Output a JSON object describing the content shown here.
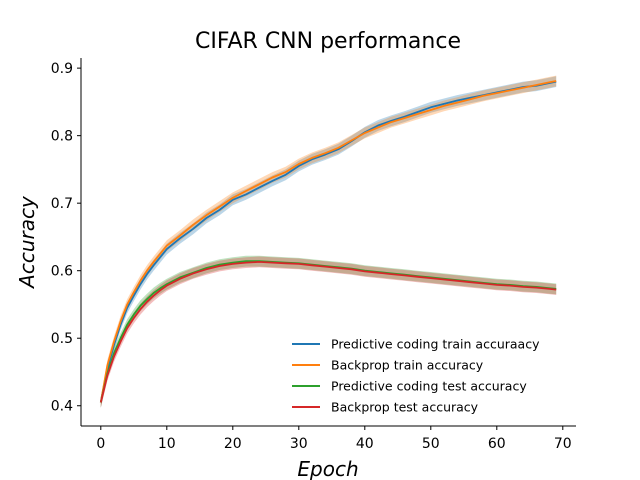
{
  "chart_data": {
    "type": "line",
    "title": "CIFAR CNN performance",
    "xlabel": "Epoch",
    "ylabel": "Accuracy",
    "xlim": [
      -3,
      72
    ],
    "ylim": [
      0.37,
      0.915
    ],
    "xticks": [
      0,
      10,
      20,
      30,
      40,
      50,
      60,
      70
    ],
    "yticks": [
      0.4,
      0.5,
      0.6,
      0.7,
      0.8,
      0.9
    ],
    "grid": false,
    "legend_position": "lower-right",
    "series": [
      {
        "name": "Predictive coding train accuraacy",
        "color": "#1f77b4",
        "x": [
          0,
          1,
          2,
          3,
          4,
          5,
          6,
          7,
          8,
          9,
          10,
          12,
          14,
          16,
          18,
          20,
          22,
          24,
          26,
          28,
          30,
          32,
          34,
          36,
          38,
          40,
          42,
          44,
          46,
          48,
          50,
          52,
          54,
          56,
          58,
          60,
          62,
          64,
          66,
          68,
          69
        ],
        "y": [
          0.405,
          0.455,
          0.49,
          0.52,
          0.545,
          0.563,
          0.58,
          0.595,
          0.608,
          0.62,
          0.632,
          0.648,
          0.662,
          0.678,
          0.69,
          0.705,
          0.713,
          0.723,
          0.733,
          0.742,
          0.755,
          0.765,
          0.772,
          0.78,
          0.792,
          0.805,
          0.815,
          0.822,
          0.828,
          0.835,
          0.842,
          0.847,
          0.852,
          0.856,
          0.86,
          0.864,
          0.868,
          0.872,
          0.874,
          0.878,
          0.88
        ],
        "band": 0.008
      },
      {
        "name": "Backprop train accuracy",
        "color": "#ff7f0e",
        "x": [
          0,
          1,
          2,
          3,
          4,
          5,
          6,
          7,
          8,
          9,
          10,
          12,
          14,
          16,
          18,
          20,
          22,
          24,
          26,
          28,
          30,
          32,
          34,
          36,
          38,
          40,
          42,
          44,
          46,
          48,
          50,
          52,
          54,
          56,
          58,
          60,
          62,
          64,
          66,
          68,
          69
        ],
        "y": [
          0.405,
          0.46,
          0.495,
          0.525,
          0.55,
          0.568,
          0.585,
          0.6,
          0.613,
          0.625,
          0.637,
          0.652,
          0.668,
          0.682,
          0.695,
          0.708,
          0.718,
          0.728,
          0.738,
          0.746,
          0.758,
          0.767,
          0.774,
          0.782,
          0.793,
          0.804,
          0.812,
          0.82,
          0.826,
          0.832,
          0.838,
          0.844,
          0.849,
          0.854,
          0.859,
          0.863,
          0.867,
          0.871,
          0.875,
          0.879,
          0.881
        ],
        "band": 0.008
      },
      {
        "name": "Predictive coding test accuracy",
        "color": "#2ca02c",
        "x": [
          0,
          1,
          2,
          3,
          4,
          5,
          6,
          7,
          8,
          9,
          10,
          12,
          14,
          16,
          18,
          20,
          22,
          24,
          26,
          28,
          30,
          32,
          34,
          36,
          38,
          40,
          42,
          44,
          46,
          48,
          50,
          52,
          54,
          56,
          58,
          60,
          62,
          64,
          66,
          68,
          69
        ],
        "y": [
          0.405,
          0.448,
          0.478,
          0.5,
          0.52,
          0.535,
          0.548,
          0.558,
          0.567,
          0.574,
          0.58,
          0.59,
          0.597,
          0.604,
          0.609,
          0.612,
          0.614,
          0.614,
          0.613,
          0.612,
          0.611,
          0.609,
          0.607,
          0.605,
          0.603,
          0.6,
          0.598,
          0.596,
          0.594,
          0.592,
          0.59,
          0.588,
          0.586,
          0.584,
          0.582,
          0.58,
          0.579,
          0.577,
          0.576,
          0.574,
          0.573
        ],
        "band": 0.008
      },
      {
        "name": "Backprop test accuracy",
        "color": "#d62728",
        "x": [
          0,
          1,
          2,
          3,
          4,
          5,
          6,
          7,
          8,
          9,
          10,
          12,
          14,
          16,
          18,
          20,
          22,
          24,
          26,
          28,
          30,
          32,
          34,
          36,
          38,
          40,
          42,
          44,
          46,
          48,
          50,
          52,
          54,
          56,
          58,
          60,
          62,
          64,
          66,
          68,
          69
        ],
        "y": [
          0.405,
          0.445,
          0.473,
          0.495,
          0.515,
          0.53,
          0.543,
          0.554,
          0.563,
          0.571,
          0.578,
          0.588,
          0.596,
          0.602,
          0.607,
          0.61,
          0.612,
          0.613,
          0.612,
          0.611,
          0.61,
          0.608,
          0.606,
          0.604,
          0.602,
          0.599,
          0.597,
          0.595,
          0.593,
          0.591,
          0.589,
          0.587,
          0.585,
          0.583,
          0.581,
          0.579,
          0.578,
          0.576,
          0.575,
          0.573,
          0.572
        ],
        "band": 0.008
      }
    ]
  }
}
